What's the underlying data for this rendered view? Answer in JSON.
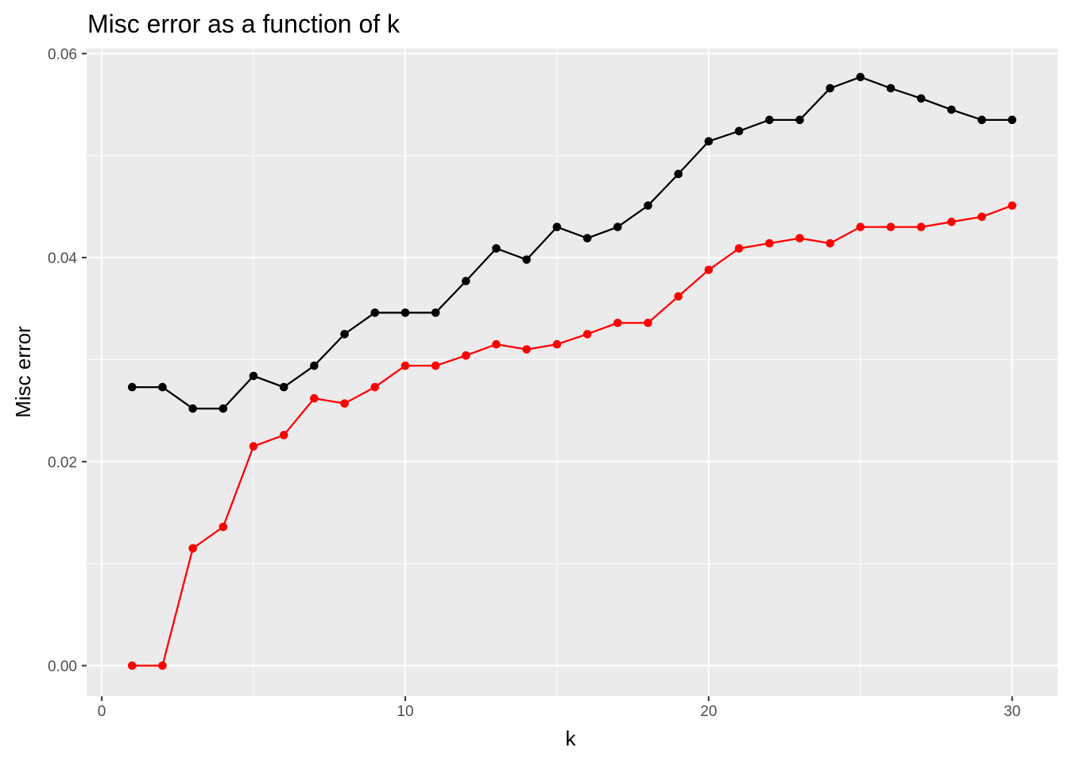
{
  "chart_data": {
    "type": "line",
    "title": "Misc error as a function of k",
    "xlabel": "k",
    "ylabel": "Misc error",
    "xlim": [
      -0.5,
      31.5
    ],
    "ylim": [
      -0.003,
      0.0605
    ],
    "x_ticks": [
      0,
      10,
      20,
      30
    ],
    "x_tick_labels": [
      "0",
      "10",
      "20",
      "30"
    ],
    "y_ticks": [
      0.0,
      0.02,
      0.04,
      0.06
    ],
    "y_tick_labels": [
      "0.00",
      "0.02",
      "0.04",
      "0.06"
    ],
    "grid": true,
    "legend": "none",
    "x": [
      1,
      2,
      3,
      4,
      5,
      6,
      7,
      8,
      9,
      10,
      11,
      12,
      13,
      14,
      15,
      16,
      17,
      18,
      19,
      20,
      21,
      22,
      23,
      24,
      25,
      26,
      27,
      28,
      29,
      30
    ],
    "series": [
      {
        "color": "#000000",
        "values": [
          0.0273,
          0.0273,
          0.0252,
          0.0252,
          0.0284,
          0.0273,
          0.0294,
          0.0325,
          0.0346,
          0.0346,
          0.0346,
          0.0377,
          0.0409,
          0.0398,
          0.043,
          0.0419,
          0.043,
          0.0451,
          0.0482,
          0.0514,
          0.0524,
          0.0535,
          0.0535,
          0.0566,
          0.0577,
          0.0566,
          0.0556,
          0.0545,
          0.0535,
          0.0535
        ]
      },
      {
        "color": "#ff0000",
        "values": [
          0.0,
          0.0,
          0.0115,
          0.0136,
          0.0215,
          0.0226,
          0.0262,
          0.0257,
          0.0273,
          0.0294,
          0.0294,
          0.0304,
          0.0315,
          0.031,
          0.0315,
          0.0325,
          0.0336,
          0.0336,
          0.0362,
          0.0388,
          0.0409,
          0.0414,
          0.0419,
          0.0414,
          0.043,
          0.043,
          0.043,
          0.0435,
          0.044,
          0.0451
        ]
      }
    ]
  }
}
